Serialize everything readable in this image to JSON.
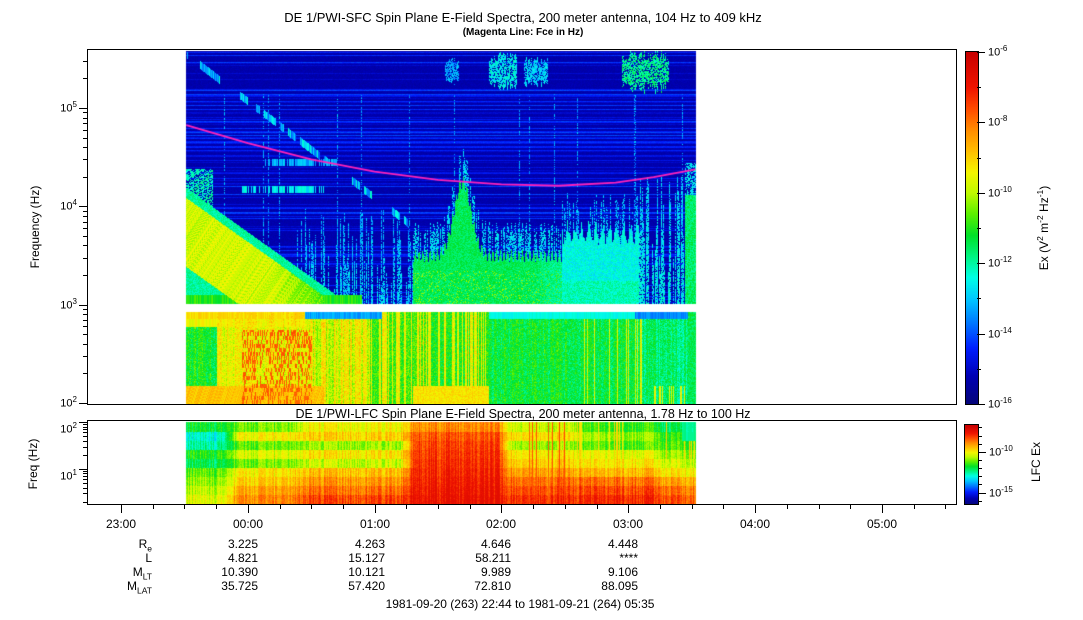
{
  "bottom_axis": {
    "hour_labels": [
      "23:00",
      "00:00",
      "01:00",
      "02:00",
      "03:00",
      "04:00",
      "05:00"
    ],
    "hour_values": [
      23,
      24,
      25,
      26,
      27,
      28,
      29
    ],
    "param_rows": [
      {
        "label_base": "R",
        "label_sub": "e",
        "values": [
          "",
          "3.225",
          "4.263",
          "4.646",
          "4.448",
          "",
          ""
        ]
      },
      {
        "label_base": "L",
        "label_sub": "",
        "values": [
          "",
          "4.821",
          "15.127",
          "58.211",
          "****",
          "",
          ""
        ]
      },
      {
        "label_base": "M",
        "label_sub": "LT",
        "values": [
          "",
          "10.390",
          "10.121",
          "9.989",
          "9.106",
          "",
          ""
        ]
      },
      {
        "label_base": "M",
        "label_sub": "LAT",
        "values": [
          "",
          "35.725",
          "57.420",
          "72.810",
          "88.095",
          "",
          ""
        ]
      }
    ],
    "date_range": "1981-09-20 (263) 22:44 to 1981-09-21 (264) 05:35"
  },
  "chart_data": [
    {
      "id": "sfc",
      "type": "heatmap",
      "title": "DE 1/PWI-SFC  Spin Plane E-Field Spectra, 200 meter antenna, 104 Hz to 409 kHz",
      "subtitle": "(Magenta Line: Fce in Hz)",
      "ylabel": "Frequency (Hz)",
      "y_scale": "log",
      "y_range_hz": [
        100,
        409000
      ],
      "y_tick_exps": [
        5,
        4,
        3,
        2
      ],
      "time_span": "22:44 to 05:35",
      "data_span_hours": [
        23.515,
        27.53
      ],
      "gap_band_hz": [
        1000,
        1180
      ],
      "colorbar": {
        "label_parts": [
          {
            "t": "Ex (V"
          },
          {
            "t": "2",
            "sup": true
          },
          {
            "t": " m"
          },
          {
            "t": "-2",
            "sup": true
          },
          {
            "t": " Hz"
          },
          {
            "t": "-1",
            "sup": true
          },
          {
            "t": ")"
          }
        ],
        "tick_exps": [
          -6,
          -8,
          -10,
          -12,
          -14,
          -16
        ],
        "range_exp": [
          -16,
          -6
        ]
      },
      "fce_line": {
        "color": "#ff22bb",
        "points_hour_hz": [
          [
            23.515,
            67000
          ],
          [
            24.0,
            44000
          ],
          [
            24.5,
            30000
          ],
          [
            25.0,
            22500
          ],
          [
            25.5,
            18600
          ],
          [
            26.0,
            16700
          ],
          [
            26.45,
            16200
          ],
          [
            26.9,
            17400
          ],
          [
            27.2,
            19800
          ],
          [
            27.53,
            23800
          ]
        ]
      },
      "features": {
        "hiss_funnel": {
          "t_start": 23.5,
          "t_end": 24.95,
          "u_top_start": 4.2,
          "u_slope_per_hour": 0.92,
          "z_green": -12.3,
          "z_core": -10.3
        },
        "streak_forest_1": {
          "t0": 24.38,
          "t1": 25.32,
          "density": 0.62,
          "u_max": 4.0,
          "z": -13.4
        },
        "green_mass": {
          "t0": 25.3,
          "t1": 26.47,
          "u_top_base": 3.5,
          "plume_center": 25.69,
          "plume_height": 0.75,
          "plume_sigma": 0.095,
          "z": -11.9
        },
        "cyan_mass": {
          "t0": 26.47,
          "t1": 27.08,
          "u_top": 3.68,
          "z": -12.9
        },
        "streak_forest_2": {
          "t0": 27.08,
          "t1": 27.44,
          "density": 0.7,
          "u_max": 4.3,
          "z": -13.0
        },
        "edge_strip": {
          "t0": 27.44,
          "t1": 27.53,
          "u_max": 4.45,
          "z": -12.1
        },
        "akr_patches": [
          {
            "t0": 25.55,
            "t1": 25.66,
            "u_center": 5.38,
            "u_halfwidth": 0.1,
            "z": -13.4
          },
          {
            "t0": 25.9,
            "t1": 26.12,
            "u_center": 5.38,
            "u_halfwidth": 0.14,
            "z": -12.7
          },
          {
            "t0": 26.17,
            "t1": 26.36,
            "u_center": 5.37,
            "u_halfwidth": 0.12,
            "z": -13.0
          },
          {
            "t0": 26.95,
            "t1": 27.32,
            "u_center": 5.38,
            "u_halfwidth": 0.17,
            "z": -12.0
          }
        ],
        "descending_trace": {
          "t0": 23.52,
          "t1": 25.5,
          "u_start": 5.54,
          "u_slope_per_hour": 0.98
        },
        "dashed_rows": [
          {
            "u": 4.18,
            "t0": 23.95,
            "t1": 24.6,
            "z": -13.0
          },
          {
            "u": 4.45,
            "t0": 24.1,
            "t1": 24.7,
            "z": -13.6
          }
        ],
        "lower_band_eras": [
          {
            "t0": 23.515,
            "t1": 23.75,
            "z": -11.1
          },
          {
            "t0": 23.75,
            "t1": 24.5,
            "z": -9.5
          },
          {
            "t0": 24.5,
            "t1": 24.95,
            "z": -9.9
          },
          {
            "t0": 24.95,
            "t1": 25.42,
            "z": -10.7
          },
          {
            "t0": 25.42,
            "t1": 25.9,
            "z": -10.9
          },
          {
            "t0": 25.9,
            "t1": 26.6,
            "z": -11.25
          },
          {
            "t0": 26.6,
            "t1": 27.1,
            "z": -11.3
          },
          {
            "t0": 27.1,
            "t1": 27.53,
            "z": -11.7
          }
        ]
      }
    },
    {
      "id": "lfc",
      "type": "heatmap",
      "title": "DE 1/PWI-LFC  Spin Plane E-Field Spectra, 200 meter antenna, 1.78 Hz to 100 Hz",
      "ylabel": "Freq (Hz)",
      "y_scale": "log",
      "y_range_hz": [
        1.78,
        100
      ],
      "y_tick_exps": [
        2,
        1
      ],
      "data_span_hours": [
        23.515,
        27.53
      ],
      "colorbar": {
        "label": "LFC Ex",
        "tick_exps": [
          -10,
          -15
        ],
        "minor_exps": [
          -16,
          -15,
          -14,
          -13,
          -12,
          -11,
          -10,
          -9,
          -8,
          -7
        ],
        "range_exp": [
          -16.4,
          -6.7
        ]
      },
      "features": {
        "era_rows": [
          {
            "t_end": 23.8,
            "rows": [
              -11.6,
              -12.6,
              -12.3,
              -11.4,
              -11.8,
              -11.0,
              -10.7,
              -10.4,
              -10.1
            ]
          },
          {
            "t_end": 24.35,
            "rows": [
              -10.9,
              -9.9,
              -11.0,
              -10.2,
              -10.9,
              -9.8,
              -9.5,
              -9.1,
              -8.8
            ]
          },
          {
            "t_end": 25.2,
            "rows": [
              -9.9,
              -9.5,
              -10.6,
              -9.7,
              -10.3,
              -9.3,
              -8.9,
              -8.5,
              -8.1
            ]
          },
          {
            "t_end": 25.97,
            "rows": [
              -8.8,
              -8.3,
              -8.1,
              -8.0,
              -7.9,
              -7.8,
              -7.7,
              -7.6,
              -7.5
            ]
          },
          {
            "t_end": 26.55,
            "rows": [
              -10.3,
              -9.7,
              -10.6,
              -9.8,
              -9.5,
              -9.0,
              -8.5,
              -8.2,
              -7.9
            ]
          },
          {
            "t_end": 27.15,
            "rows": [
              -11.2,
              -10.6,
              -11.0,
              -10.0,
              -9.7,
              -9.2,
              -8.5,
              -8.1,
              -7.8
            ]
          },
          {
            "t_end": 27.53,
            "rows": [
              -11.8,
              -11.3,
              -11.1,
              -10.6,
              -10.2,
              -9.7,
              -9.0,
              -8.5,
              -8.2
            ]
          }
        ],
        "end_cyan_patch": {
          "t0": 27.42,
          "t1": 27.53,
          "rows": 2,
          "z": -12.4
        }
      }
    }
  ]
}
